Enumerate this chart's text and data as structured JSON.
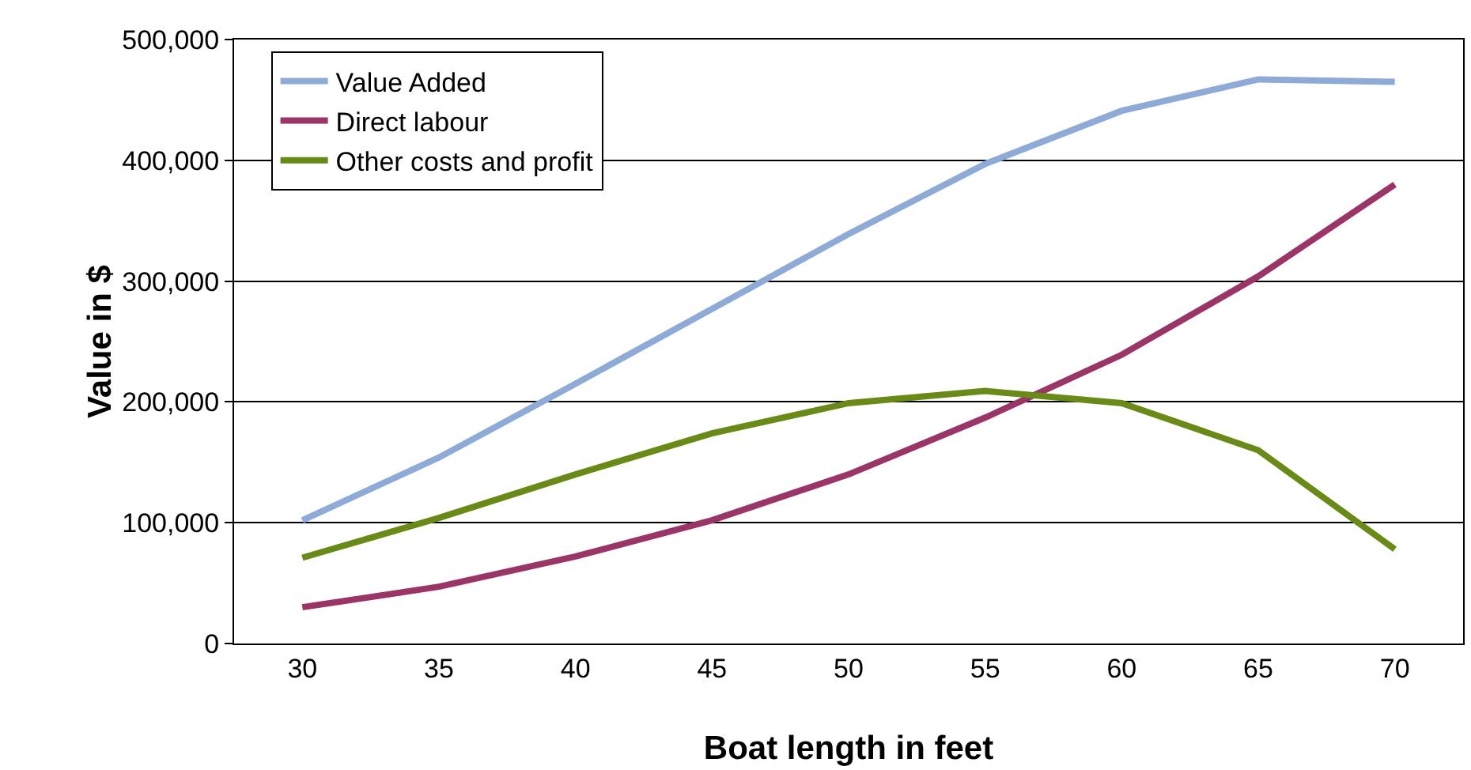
{
  "chart_data": {
    "type": "line",
    "xlabel": "Boat length in feet",
    "ylabel": "Value in $",
    "categories": [
      "30",
      "35",
      "40",
      "45",
      "50",
      "55",
      "60",
      "65",
      "70"
    ],
    "series": [
      {
        "name": "Value Added",
        "color": "#8eaad6",
        "values": [
          102000,
          154000,
          215000,
          277000,
          339000,
          397000,
          441000,
          467000,
          465000
        ]
      },
      {
        "name": "Direct labour",
        "color": "#9b3467",
        "values": [
          30000,
          47000,
          72000,
          102000,
          140000,
          187000,
          239000,
          304000,
          380000
        ]
      },
      {
        "name": "Other costs and profit",
        "color": "#6a8a17",
        "values": [
          71000,
          104000,
          140000,
          174000,
          199000,
          209000,
          199000,
          160000,
          78000
        ]
      }
    ],
    "ylim": [
      0,
      500000
    ],
    "yticks": [
      {
        "value": 0,
        "label": "0"
      },
      {
        "value": 100000,
        "label": "100,000"
      },
      {
        "value": 200000,
        "label": "200,000"
      },
      {
        "value": 300000,
        "label": "300,000"
      },
      {
        "value": 400000,
        "label": "400,000"
      },
      {
        "value": 500000,
        "label": "500,000"
      }
    ],
    "grid": "y",
    "legend": "top left",
    "marker": "none",
    "line_style": "solid"
  }
}
